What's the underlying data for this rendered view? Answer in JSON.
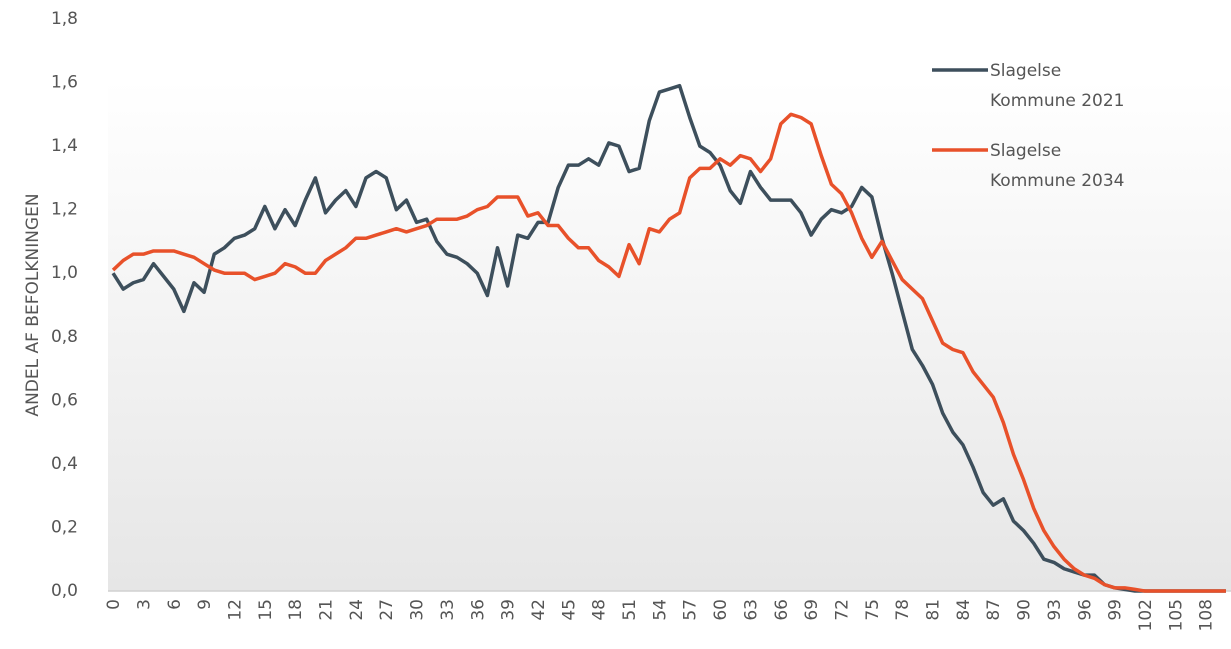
{
  "chart_data": {
    "type": "line",
    "y_label": "ANDEL AF BEFOLKNINGEN",
    "categories": [
      "0",
      null,
      null,
      "3",
      null,
      null,
      "6",
      null,
      null,
      "9",
      null,
      null,
      "12",
      null,
      null,
      "15",
      null,
      null,
      "18",
      null,
      null,
      "21",
      null,
      null,
      "24",
      null,
      null,
      "27",
      null,
      null,
      "30",
      null,
      null,
      "33",
      null,
      null,
      "36",
      null,
      null,
      "39",
      null,
      null,
      "42",
      null,
      null,
      "45",
      null,
      null,
      "48",
      null,
      null,
      "51",
      null,
      null,
      "54",
      null,
      null,
      "57",
      null,
      null,
      "60",
      null,
      null,
      "63",
      null,
      null,
      "66",
      null,
      null,
      "69",
      null,
      null,
      "72",
      null,
      null,
      "75",
      null,
      null,
      "78",
      null,
      null,
      "81",
      null,
      null,
      "84",
      null,
      null,
      "87",
      null,
      null,
      "90",
      null,
      null,
      "93",
      null,
      null,
      "96",
      null,
      null,
      "99",
      null,
      null,
      "102",
      null,
      null,
      "105",
      null,
      null,
      "108",
      null,
      null
    ],
    "series": [
      {
        "name": "Slagelse Kommune 2021",
        "color": "#3d4f5c",
        "values": [
          1.0,
          0.95,
          0.97,
          0.98,
          1.03,
          0.99,
          0.95,
          0.88,
          0.97,
          0.94,
          1.06,
          1.08,
          1.11,
          1.12,
          1.14,
          1.21,
          1.14,
          1.2,
          1.15,
          1.23,
          1.3,
          1.19,
          1.23,
          1.26,
          1.21,
          1.3,
          1.32,
          1.3,
          1.2,
          1.23,
          1.16,
          1.17,
          1.1,
          1.06,
          1.05,
          1.03,
          1.0,
          0.93,
          1.08,
          0.96,
          1.12,
          1.11,
          1.16,
          1.16,
          1.27,
          1.34,
          1.34,
          1.36,
          1.34,
          1.41,
          1.4,
          1.32,
          1.33,
          1.48,
          1.57,
          1.58,
          1.59,
          1.49,
          1.4,
          1.38,
          1.34,
          1.26,
          1.22,
          1.32,
          1.27,
          1.23,
          1.23,
          1.23,
          1.19,
          1.12,
          1.17,
          1.2,
          1.19,
          1.21,
          1.27,
          1.24,
          1.11,
          1.0,
          0.88,
          0.76,
          0.71,
          0.65,
          0.56,
          0.5,
          0.46,
          0.39,
          0.31,
          0.27,
          0.29,
          0.22,
          0.19,
          0.15,
          0.1,
          0.09,
          0.07,
          0.06,
          0.05,
          0.05,
          0.02,
          0.01,
          0.005,
          0,
          0,
          0,
          0,
          0,
          0,
          0,
          0,
          0,
          0
        ]
      },
      {
        "name": "Slagelse Kommune 2034",
        "color": "#e8512a",
        "values": [
          1.01,
          1.04,
          1.06,
          1.06,
          1.07,
          1.07,
          1.07,
          1.06,
          1.05,
          1.03,
          1.01,
          1.0,
          1.0,
          1.0,
          0.98,
          0.99,
          1.0,
          1.03,
          1.02,
          1.0,
          1.0,
          1.04,
          1.06,
          1.08,
          1.11,
          1.11,
          1.12,
          1.13,
          1.14,
          1.13,
          1.14,
          1.15,
          1.17,
          1.17,
          1.17,
          1.18,
          1.2,
          1.21,
          1.24,
          1.24,
          1.24,
          1.18,
          1.19,
          1.15,
          1.15,
          1.11,
          1.08,
          1.08,
          1.04,
          1.02,
          0.99,
          1.09,
          1.03,
          1.14,
          1.13,
          1.17,
          1.19,
          1.3,
          1.33,
          1.33,
          1.36,
          1.34,
          1.37,
          1.36,
          1.32,
          1.36,
          1.47,
          1.5,
          1.49,
          1.47,
          1.37,
          1.28,
          1.25,
          1.19,
          1.11,
          1.05,
          1.1,
          1.04,
          0.98,
          0.95,
          0.92,
          0.85,
          0.78,
          0.76,
          0.75,
          0.69,
          0.65,
          0.61,
          0.53,
          0.43,
          0.35,
          0.26,
          0.19,
          0.14,
          0.1,
          0.07,
          0.05,
          0.04,
          0.02,
          0.01,
          0.01,
          0.005,
          0,
          0,
          0,
          0,
          0,
          0,
          0,
          0,
          0
        ]
      }
    ],
    "ylim": [
      0,
      1.8
    ],
    "yticks": [
      {
        "value": 0,
        "label": "0,0"
      },
      {
        "value": 0.2,
        "label": "0,2"
      },
      {
        "value": 0.4,
        "label": "0,4"
      },
      {
        "value": 0.6,
        "label": "0,6"
      },
      {
        "value": 0.8,
        "label": "0,8"
      },
      {
        "value": 1.0,
        "label": "1,0"
      },
      {
        "value": 1.2,
        "label": "1,2"
      },
      {
        "value": 1.4,
        "label": "1,4"
      },
      {
        "value": 1.6,
        "label": "1,6"
      },
      {
        "value": 1.8,
        "label": "1,8"
      }
    ],
    "grid": false,
    "legend": "upper right"
  }
}
